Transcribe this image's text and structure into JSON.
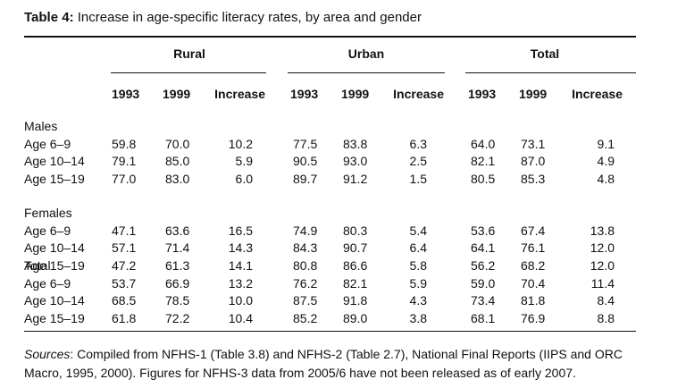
{
  "caption": {
    "label": "Table 4:",
    "text": "Increase in age-specific literacy rates, by area and gender"
  },
  "groups": [
    "Rural",
    "Urban",
    "Total"
  ],
  "columns": [
    "1993",
    "1999",
    "Increase",
    "1993",
    "1999",
    "Increase",
    "1993",
    "1999",
    "Increase"
  ],
  "sections": [
    {
      "name": "Males",
      "rows": [
        {
          "label": "Age 6–9",
          "values": [
            "59.8",
            "70.0",
            "10.2",
            "77.5",
            "83.8",
            "6.3",
            "64.0",
            "73.1",
            "9.1"
          ]
        },
        {
          "label": "Age 10–14",
          "values": [
            "79.1",
            "85.0",
            "5.9",
            "90.5",
            "93.0",
            "2.5",
            "82.1",
            "87.0",
            "4.9"
          ]
        },
        {
          "label": "Age 15–19",
          "values": [
            "77.0",
            "83.0",
            "6.0",
            "89.7",
            "91.2",
            "1.5",
            "80.5",
            "85.3",
            "4.8"
          ]
        }
      ]
    },
    {
      "name": "Females",
      "rows": [
        {
          "label": "Age 6–9",
          "values": [
            "47.1",
            "63.6",
            "16.5",
            "74.9",
            "80.3",
            "5.4",
            "53.6",
            "67.4",
            "13.8"
          ]
        },
        {
          "label": "Age 10–14",
          "values": [
            "57.1",
            "71.4",
            "14.3",
            "84.3",
            "90.7",
            "6.4",
            "64.1",
            "76.1",
            "12.0"
          ]
        },
        {
          "label": "Age 15–19",
          "values": [
            "47.2",
            "61.3",
            "14.1",
            "80.8",
            "86.6",
            "5.8",
            "56.2",
            "68.2",
            "12.0"
          ]
        }
      ]
    },
    {
      "name": "Total",
      "rows": [
        {
          "label": "Age 6–9",
          "values": [
            "53.7",
            "66.9",
            "13.2",
            "76.2",
            "82.1",
            "5.9",
            "59.0",
            "70.4",
            "11.4"
          ]
        },
        {
          "label": "Age 10–14",
          "values": [
            "68.5",
            "78.5",
            "10.0",
            "87.5",
            "91.8",
            "4.3",
            "73.4",
            "81.8",
            "8.4"
          ]
        },
        {
          "label": "Age 15–19",
          "values": [
            "61.8",
            "72.2",
            "10.4",
            "85.2",
            "89.0",
            "3.8",
            "68.1",
            "76.9",
            "8.8"
          ]
        }
      ]
    }
  ],
  "notes": {
    "label": "Sources",
    "text": ": Compiled from NFHS-1 (Table 3.8) and NFHS-2 (Table 2.7), National Final Reports (IIPS and ORC Macro, 1995, 2000). Figures for NFHS-3 data from 2005/6 have not been released as of early 2007."
  }
}
